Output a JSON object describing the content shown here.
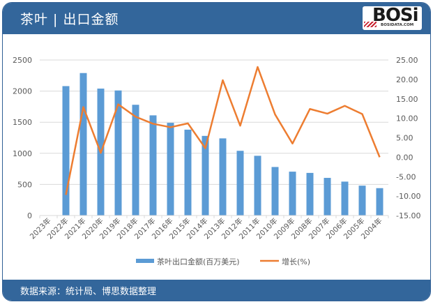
{
  "header": {
    "title": "茶叶 | 出口金额",
    "logo_text": "BOSi",
    "logo_sub": "BOSIDATA.COM"
  },
  "footer": {
    "source": "数据来源：统计局、博思数据整理"
  },
  "colors": {
    "header_bg": "#33669b",
    "bar": "#5b9bd5",
    "line": "#ed7d31",
    "grid": "#d9d9d9"
  },
  "legend": {
    "bar_label": "茶叶出口金额(百万美元)",
    "line_label": "增长(%)"
  },
  "chart_data": {
    "type": "bar+line",
    "title": "茶叶 | 出口金额",
    "categories": [
      "2023年",
      "2022年",
      "2021年",
      "2020年",
      "2019年",
      "2018年",
      "2017年",
      "2016年",
      "2015年",
      "2014年",
      "2013年",
      "2012年",
      "2011年",
      "2010年",
      "2009年",
      "2008年",
      "2007年",
      "2006年",
      "2005年",
      "2004年"
    ],
    "series": [
      {
        "name": "茶叶出口金额(百万美元)",
        "type": "bar",
        "axis": "left",
        "values": [
          null,
          2080,
          2290,
          2040,
          2010,
          1780,
          1610,
          1490,
          1380,
          1280,
          1240,
          1040,
          960,
          780,
          705,
          685,
          605,
          545,
          480,
          440
        ]
      },
      {
        "name": "增长(%)",
        "type": "line",
        "axis": "right",
        "values": [
          null,
          -9.7,
          12.9,
          1.1,
          13.6,
          10.4,
          8.6,
          7.7,
          8.7,
          2.3,
          19.8,
          8.1,
          23.2,
          11.0,
          3.5,
          12.4,
          11.2,
          13.2,
          11.1,
          0.0
        ]
      }
    ],
    "left_axis": {
      "ticks": [
        "0",
        "500",
        "1000",
        "1500",
        "2000",
        "2500"
      ],
      "ylim": [
        0,
        2500
      ]
    },
    "right_axis": {
      "ticks": [
        "-15.00",
        "-10.00",
        "-5.00",
        "0.00",
        "5.00",
        "10.00",
        "15.00",
        "20.00",
        "25.00"
      ],
      "ylim": [
        -15,
        25
      ]
    },
    "xlabel": "",
    "ylabel": "",
    "grid": true,
    "legend_position": "bottom"
  }
}
